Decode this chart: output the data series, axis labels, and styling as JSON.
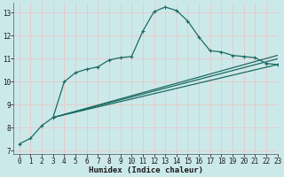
{
  "xlabel": "Humidex (Indice chaleur)",
  "bg_color": "#cce9ea",
  "grid_color": "#e8c8c8",
  "line_color": "#1a6b62",
  "xlim": [
    -0.5,
    23
  ],
  "ylim": [
    6.85,
    13.45
  ],
  "yticks": [
    7,
    8,
    9,
    10,
    11,
    12,
    13
  ],
  "xticks": [
    0,
    1,
    2,
    3,
    4,
    5,
    6,
    7,
    8,
    9,
    10,
    11,
    12,
    13,
    14,
    15,
    16,
    17,
    18,
    19,
    20,
    21,
    22,
    23
  ],
  "main_x": [
    0,
    1,
    2,
    3,
    4,
    5,
    6,
    7,
    8,
    9,
    10,
    11,
    12,
    13,
    14,
    15,
    16,
    17,
    18,
    19,
    20,
    21,
    22,
    23
  ],
  "main_y": [
    7.3,
    7.55,
    8.1,
    8.45,
    10.0,
    10.4,
    10.55,
    10.65,
    10.95,
    11.05,
    11.1,
    12.2,
    13.05,
    13.25,
    13.1,
    12.65,
    11.95,
    11.35,
    11.3,
    11.15,
    11.1,
    11.05,
    10.8,
    10.75
  ],
  "fan_origin_x": 3,
  "fan_origin_y": 8.45,
  "fan_end_x": 23,
  "fan_line1_end_y": 10.75,
  "fan_line2_end_y": 11.0,
  "fan_line3_end_y": 11.15
}
